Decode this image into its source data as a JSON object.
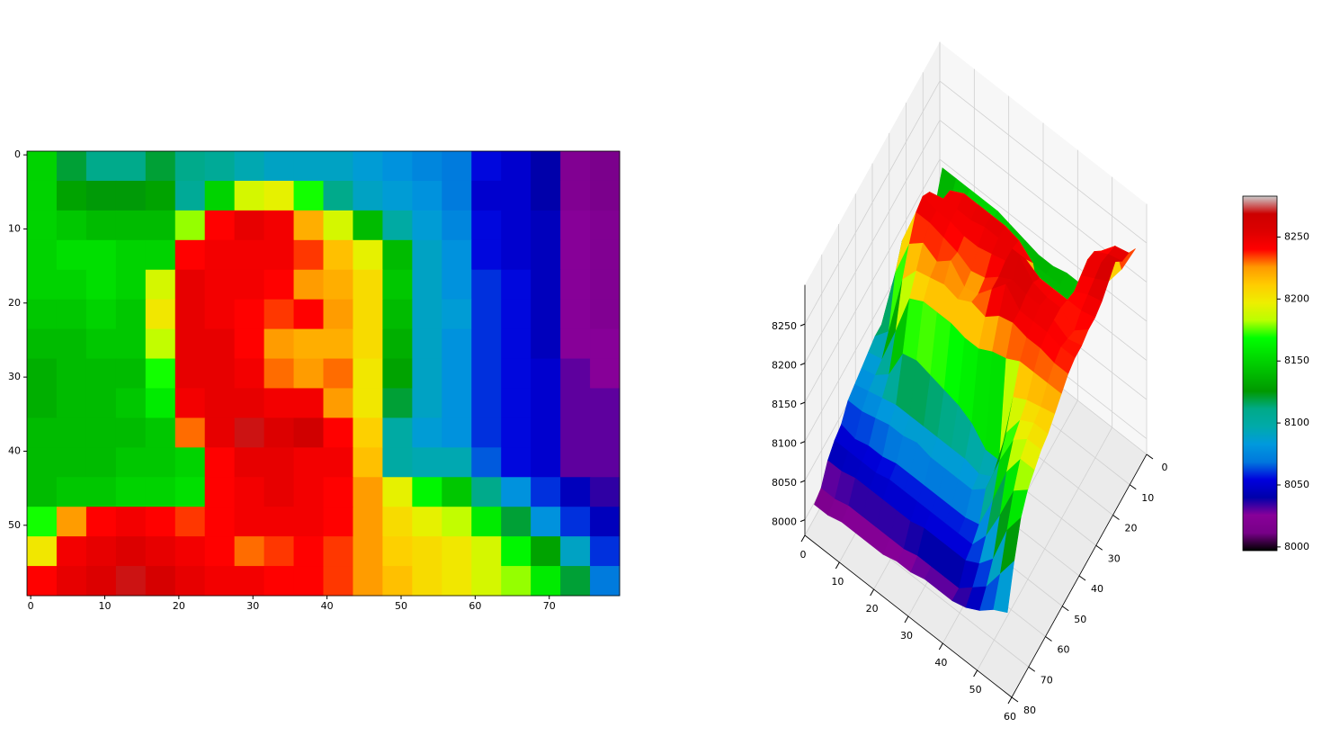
{
  "chart_data": [
    {
      "type": "heatmap",
      "colormap": "nipy_spectral",
      "clim": [
        7997,
        8283
      ],
      "xlim": [
        -0.5,
        79.5
      ],
      "ylim": [
        59.5,
        -0.5
      ],
      "xticks": [
        0,
        10,
        20,
        30,
        40,
        50,
        60,
        70
      ],
      "yticks": [
        0,
        10,
        20,
        30,
        40,
        50
      ],
      "x": [
        1.5,
        5.5,
        9.5,
        13.5,
        17.5,
        21.5,
        25.5,
        29.5,
        33.5,
        37.5,
        41.5,
        45.5,
        49.5,
        53.5,
        57.5,
        61.5,
        65.5,
        69.5,
        73.5,
        77.5
      ],
      "y": [
        1.5,
        5.5,
        9.5,
        13.5,
        17.5,
        21.5,
        25.5,
        29.5,
        33.5,
        37.5,
        41.5,
        45.5,
        49.5,
        53.5,
        57.5
      ],
      "values": [
        [
          8150,
          8120,
          8110,
          8110,
          8120,
          8110,
          8105,
          8095,
          8090,
          8090,
          8090,
          8085,
          8080,
          8075,
          8070,
          8055,
          8050,
          8040,
          8020,
          8015
        ],
        [
          8150,
          8130,
          8125,
          8125,
          8130,
          8105,
          8150,
          8190,
          8195,
          8170,
          8110,
          8090,
          8085,
          8080,
          8070,
          8050,
          8050,
          8040,
          8020,
          8015
        ],
        [
          8150,
          8145,
          8140,
          8140,
          8140,
          8180,
          8240,
          8250,
          8245,
          8220,
          8190,
          8140,
          8100,
          8085,
          8075,
          8055,
          8050,
          8045,
          8025,
          8020
        ],
        [
          8150,
          8155,
          8155,
          8150,
          8150,
          8240,
          8245,
          8245,
          8245,
          8235,
          8215,
          8195,
          8140,
          8090,
          8080,
          8055,
          8050,
          8045,
          8025,
          8020
        ],
        [
          8150,
          8150,
          8155,
          8150,
          8190,
          8250,
          8245,
          8245,
          8240,
          8225,
          8220,
          8205,
          8145,
          8090,
          8080,
          8060,
          8055,
          8045,
          8025,
          8020
        ],
        [
          8145,
          8145,
          8150,
          8145,
          8200,
          8250,
          8245,
          8240,
          8235,
          8240,
          8225,
          8205,
          8140,
          8090,
          8085,
          8060,
          8055,
          8045,
          8025,
          8020
        ],
        [
          8140,
          8140,
          8145,
          8145,
          8185,
          8250,
          8250,
          8240,
          8225,
          8220,
          8220,
          8205,
          8135,
          8090,
          8080,
          8060,
          8055,
          8045,
          8025,
          8025
        ],
        [
          8135,
          8140,
          8140,
          8140,
          8170,
          8250,
          8250,
          8245,
          8230,
          8225,
          8230,
          8200,
          8130,
          8090,
          8080,
          8060,
          8055,
          8050,
          8030,
          8025
        ],
        [
          8135,
          8140,
          8140,
          8145,
          8160,
          8245,
          8250,
          8250,
          8245,
          8245,
          8225,
          8200,
          8120,
          8090,
          8080,
          8060,
          8055,
          8050,
          8030,
          8030
        ],
        [
          8140,
          8140,
          8140,
          8140,
          8145,
          8230,
          8250,
          8270,
          8255,
          8265,
          8240,
          8210,
          8100,
          8085,
          8080,
          8060,
          8055,
          8050,
          8030,
          8030
        ],
        [
          8140,
          8140,
          8140,
          8145,
          8145,
          8150,
          8240,
          8250,
          8250,
          8245,
          8245,
          8215,
          8100,
          8095,
          8095,
          8065,
          8055,
          8050,
          8030,
          8030
        ],
        [
          8140,
          8145,
          8145,
          8150,
          8150,
          8155,
          8240,
          8245,
          8250,
          8245,
          8240,
          8225,
          8195,
          8165,
          8145,
          8110,
          8080,
          8060,
          8045,
          8035
        ],
        [
          8170,
          8225,
          8240,
          8245,
          8240,
          8235,
          8240,
          8245,
          8245,
          8245,
          8240,
          8225,
          8205,
          8195,
          8185,
          8160,
          8120,
          8080,
          8060,
          8045
        ],
        [
          8200,
          8245,
          8250,
          8255,
          8250,
          8245,
          8240,
          8230,
          8235,
          8240,
          8235,
          8225,
          8210,
          8205,
          8200,
          8190,
          8165,
          8130,
          8090,
          8060
        ],
        [
          8240,
          8250,
          8255,
          8270,
          8260,
          8250,
          8245,
          8245,
          8240,
          8240,
          8235,
          8225,
          8215,
          8205,
          8200,
          8190,
          8180,
          8160,
          8120,
          8070
        ]
      ]
    },
    {
      "type": "surface3d",
      "colormap": "nipy_spectral",
      "xlim": [
        0,
        80
      ],
      "ylim": [
        0,
        60
      ],
      "zlim": [
        7980,
        8300
      ],
      "xticks": [
        0,
        10,
        20,
        30,
        40,
        50,
        60,
        70,
        80
      ],
      "yticks": [
        0,
        10,
        20,
        30,
        40,
        50,
        60
      ],
      "zticks": [
        8000,
        8050,
        8100,
        8150,
        8200,
        8250
      ],
      "cticks": [
        8000,
        8050,
        8100,
        8150,
        8200,
        8250
      ]
    }
  ]
}
